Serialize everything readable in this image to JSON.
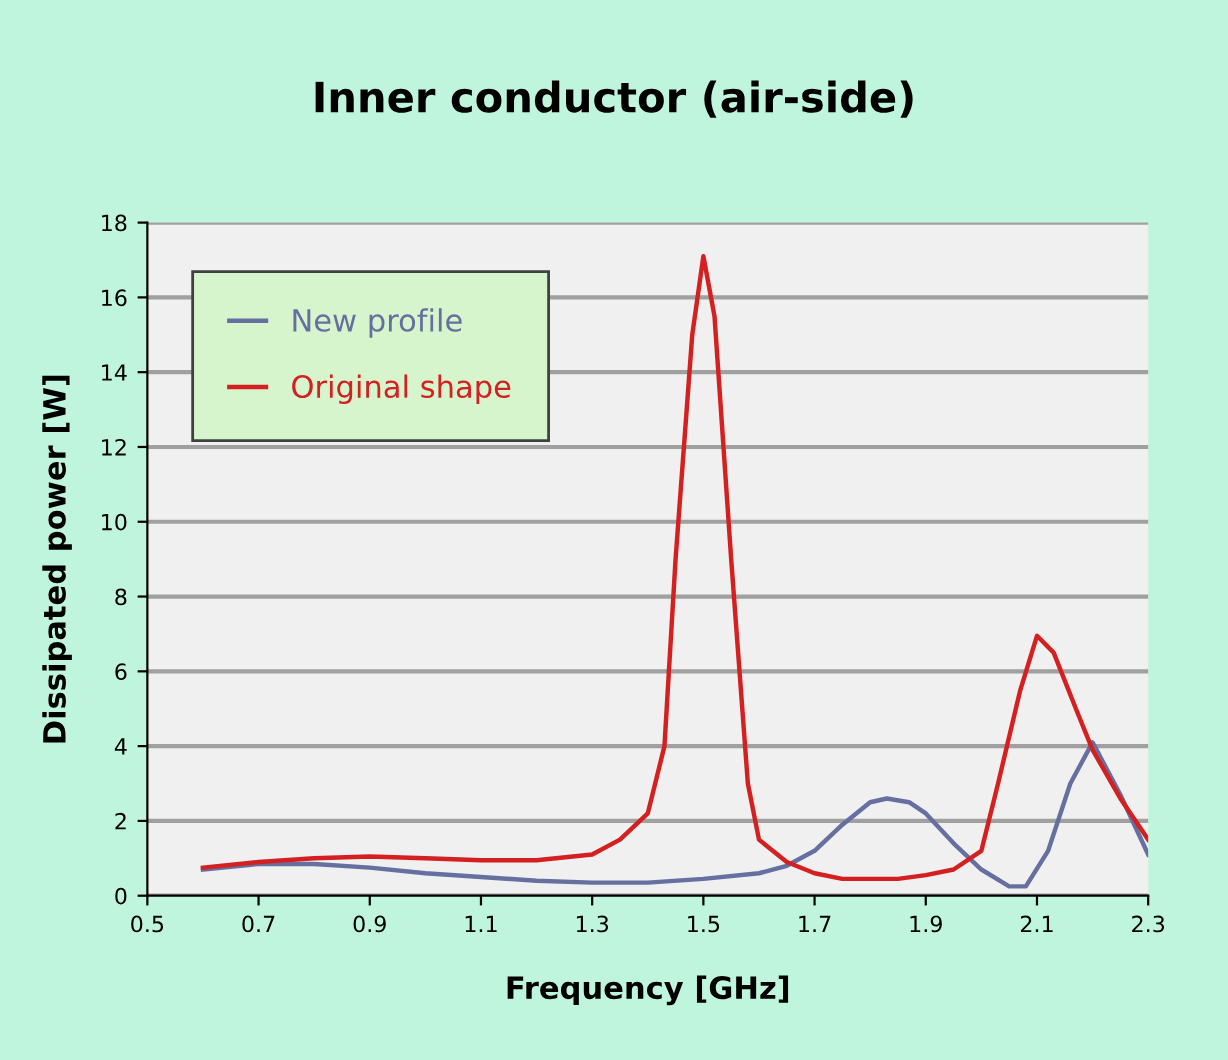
{
  "chart_data": {
    "type": "line",
    "title": "Inner conductor (air-side)",
    "xlabel": "Frequency [GHz]",
    "ylabel": "Dissipated power [W]",
    "xlim": [
      0.5,
      2.3
    ],
    "xticks": [
      0.5,
      0.7,
      0.9,
      1.1,
      1.3,
      1.5,
      1.7,
      1.9,
      2.1,
      2.3
    ],
    "ylim": [
      0,
      18
    ],
    "yticks": [
      0,
      2,
      4,
      6,
      8,
      10,
      12,
      14,
      16,
      18
    ],
    "grid": "y",
    "legend": "top left",
    "marker": "none",
    "line_style": "solid",
    "series": [
      {
        "name": "New profile",
        "color": "#6670a0",
        "x": [
          0.6,
          0.7,
          0.8,
          0.9,
          1.0,
          1.1,
          1.2,
          1.3,
          1.4,
          1.5,
          1.6,
          1.65,
          1.7,
          1.75,
          1.8,
          1.83,
          1.87,
          1.9,
          1.95,
          2.0,
          2.05,
          2.08,
          2.12,
          2.16,
          2.2,
          2.25,
          2.3
        ],
        "values": [
          0.7,
          0.85,
          0.85,
          0.75,
          0.6,
          0.5,
          0.4,
          0.35,
          0.35,
          0.45,
          0.6,
          0.8,
          1.2,
          1.9,
          2.5,
          2.6,
          2.5,
          2.2,
          1.4,
          0.7,
          0.25,
          0.25,
          1.2,
          3.0,
          4.1,
          2.7,
          1.1
        ]
      },
      {
        "name": "Original shape",
        "color": "#d42020",
        "x": [
          0.6,
          0.7,
          0.8,
          0.9,
          1.0,
          1.1,
          1.2,
          1.3,
          1.35,
          1.4,
          1.43,
          1.45,
          1.48,
          1.5,
          1.52,
          1.55,
          1.58,
          1.6,
          1.65,
          1.7,
          1.75,
          1.8,
          1.85,
          1.9,
          1.95,
          2.0,
          2.03,
          2.07,
          2.1,
          2.13,
          2.17,
          2.2,
          2.25,
          2.3
        ],
        "values": [
          0.75,
          0.9,
          1.0,
          1.05,
          1.0,
          0.95,
          0.95,
          1.1,
          1.5,
          2.2,
          4,
          9,
          15,
          17.1,
          15.5,
          9,
          3,
          1.5,
          0.9,
          0.6,
          0.45,
          0.45,
          0.45,
          0.55,
          0.7,
          1.2,
          3,
          5.5,
          6.95,
          6.5,
          5,
          3.9,
          2.6,
          1.5
        ]
      }
    ]
  }
}
